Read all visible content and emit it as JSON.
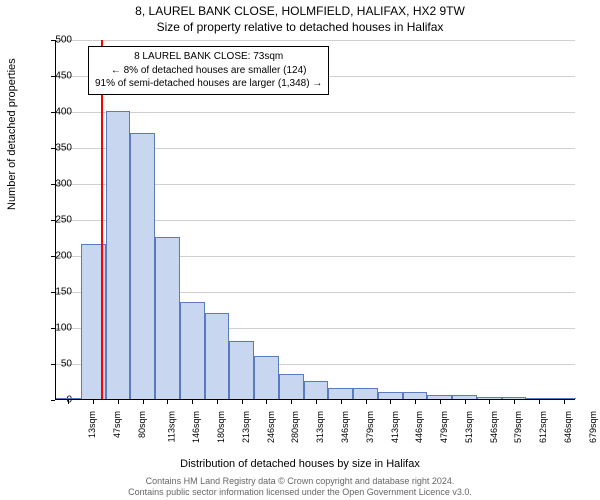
{
  "title_line1": "8, LAUREL BANK CLOSE, HOLMFIELD, HALIFAX, HX2 9TW",
  "title_line2": "Size of property relative to detached houses in Halifax",
  "ylabel": "Number of detached properties",
  "xlabel": "Distribution of detached houses by size in Halifax",
  "footer_line1": "Contains HM Land Registry data © Crown copyright and database right 2024.",
  "footer_line2": "Contains public sector information licensed under the Open Government Licence v3.0.",
  "chart": {
    "type": "histogram",
    "ylim": [
      0,
      500
    ],
    "ytick_step": 50,
    "yticks": [
      0,
      50,
      100,
      150,
      200,
      250,
      300,
      350,
      400,
      450,
      500
    ],
    "xticks": [
      "13sqm",
      "47sqm",
      "80sqm",
      "113sqm",
      "146sqm",
      "180sqm",
      "213sqm",
      "246sqm",
      "280sqm",
      "313sqm",
      "346sqm",
      "379sqm",
      "413sqm",
      "446sqm",
      "479sqm",
      "513sqm",
      "546sqm",
      "579sqm",
      "612sqm",
      "646sqm",
      "679sqm"
    ],
    "values": [
      0,
      215,
      400,
      370,
      225,
      135,
      120,
      80,
      60,
      35,
      25,
      15,
      15,
      10,
      10,
      5,
      5,
      3,
      3,
      2,
      2
    ],
    "bar_fill": "#c9d6ef",
    "bar_stroke": "#5a7bbf",
    "background_color": "#ffffff",
    "grid_color": "#d0d0d0",
    "axis_color": "#000000",
    "marker": {
      "position_index": 1.8,
      "color": "#ff0000"
    },
    "title_fontsize": 12,
    "label_fontsize": 11,
    "tick_fontsize": 10
  },
  "infobox": {
    "line1": "8 LAUREL BANK CLOSE: 73sqm",
    "line2": "← 8% of detached houses are smaller (124)",
    "line3": "91% of semi-detached houses are larger (1,348) →"
  }
}
